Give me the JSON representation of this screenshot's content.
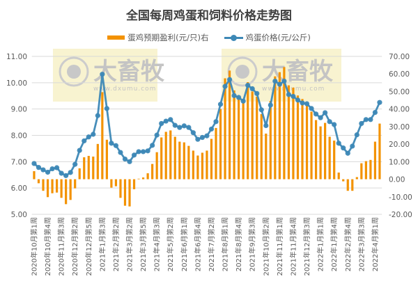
{
  "chart_data": {
    "type": "bar+line",
    "title": "全国每周鸡蛋和饲料价格走势图",
    "legend_position": "top",
    "grid": true,
    "watermark": "大畜牧 www.dxumu.com",
    "colors": {
      "profit": "#F39200",
      "price": "#3D88B6"
    },
    "tick_labels": [
      "2020年10月第1周",
      "2020年10月第4周",
      "2020年11月第3周",
      "2020年12月第2周",
      "2020年12月第5周",
      "2021年1月第3周",
      "2021年2月第2周",
      "2021年3月第2周",
      "2021年3月第5周",
      "2021年4月第3周",
      "2021年5月第2周",
      "2021年6月第1周",
      "2021年6月第4周",
      "2021年7月第2周",
      "2021年8月第1周",
      "2021年8月第4周",
      "2021年9月第3周",
      "2021年10月第2周",
      "2021年11月第1周",
      "2021年11月第4周",
      "2021年12月第3周",
      "2022年1月第1周",
      "2022年1月第4周",
      "2022年2月第4周",
      "2022年3月第3周",
      "2022年4月第1周"
    ],
    "left_axis": {
      "ylim": [
        5,
        11
      ],
      "ticks": [
        "5.00",
        "6.00",
        "7.00",
        "8.00",
        "9.00",
        "10.00",
        "11.00"
      ]
    },
    "right_axis": {
      "ylim": [
        -20,
        70
      ],
      "ticks": [
        "-20.00",
        "-10.00",
        "0.00",
        "10.00",
        "20.00",
        "30.00",
        "40.00",
        "50.00",
        "60.00",
        "70.00"
      ]
    },
    "series": [
      {
        "name": "蛋鸡预期盈利(元/只)右",
        "type": "bar",
        "axis": "right",
        "values": [
          4.6,
          -2.3,
          -6.6,
          -10.2,
          -8.0,
          -7.6,
          -10.6,
          -14.2,
          -11.8,
          -5.2,
          6.2,
          12.5,
          13.3,
          12.9,
          20.1,
          49.6,
          22.5,
          -4.8,
          -4.0,
          -10.6,
          -15.1,
          -15.5,
          -5.7,
          0.3,
          1.0,
          3.4,
          8.7,
          15.4,
          23.8,
          27.0,
          27.8,
          24.2,
          21.4,
          21.0,
          19.0,
          16.3,
          13.5,
          15.1,
          16.3,
          23.0,
          29.2,
          40.0,
          57.5,
          61.9,
          50.6,
          46.0,
          44.0,
          55.3,
          50.0,
          47.0,
          37.1,
          26.0,
          44.6,
          58.6,
          61.0,
          63.9,
          53.5,
          52.2,
          47.7,
          45.7,
          42.0,
          38.5,
          33.7,
          30.1,
          32.1,
          24.2,
          22.0,
          3.8,
          -1.2,
          -6.6,
          -6.6,
          1.2,
          9.1,
          10.3,
          11.0,
          21.4,
          31.7
        ]
      },
      {
        "name": "鸡蛋价格(元/公斤)",
        "type": "line",
        "axis": "left",
        "values": [
          6.93,
          6.78,
          6.69,
          6.6,
          6.73,
          6.77,
          6.56,
          6.47,
          6.59,
          6.9,
          7.43,
          7.79,
          7.94,
          8.04,
          8.75,
          10.32,
          9.02,
          7.7,
          7.61,
          7.35,
          7.1,
          7.0,
          7.25,
          7.38,
          7.38,
          7.41,
          7.62,
          8.01,
          8.45,
          8.54,
          8.6,
          8.38,
          8.3,
          8.36,
          8.3,
          8.1,
          7.85,
          7.92,
          7.98,
          8.24,
          8.52,
          9.18,
          9.86,
          10.12,
          9.51,
          9.44,
          9.3,
          9.9,
          9.77,
          9.59,
          8.97,
          8.37,
          9.15,
          10.06,
          9.94,
          10.06,
          9.55,
          9.48,
          9.34,
          9.23,
          9.2,
          9.02,
          8.81,
          8.67,
          8.86,
          8.52,
          8.41,
          7.7,
          7.52,
          7.32,
          7.59,
          8.02,
          8.45,
          8.6,
          8.6,
          8.87,
          9.25
        ]
      }
    ]
  }
}
